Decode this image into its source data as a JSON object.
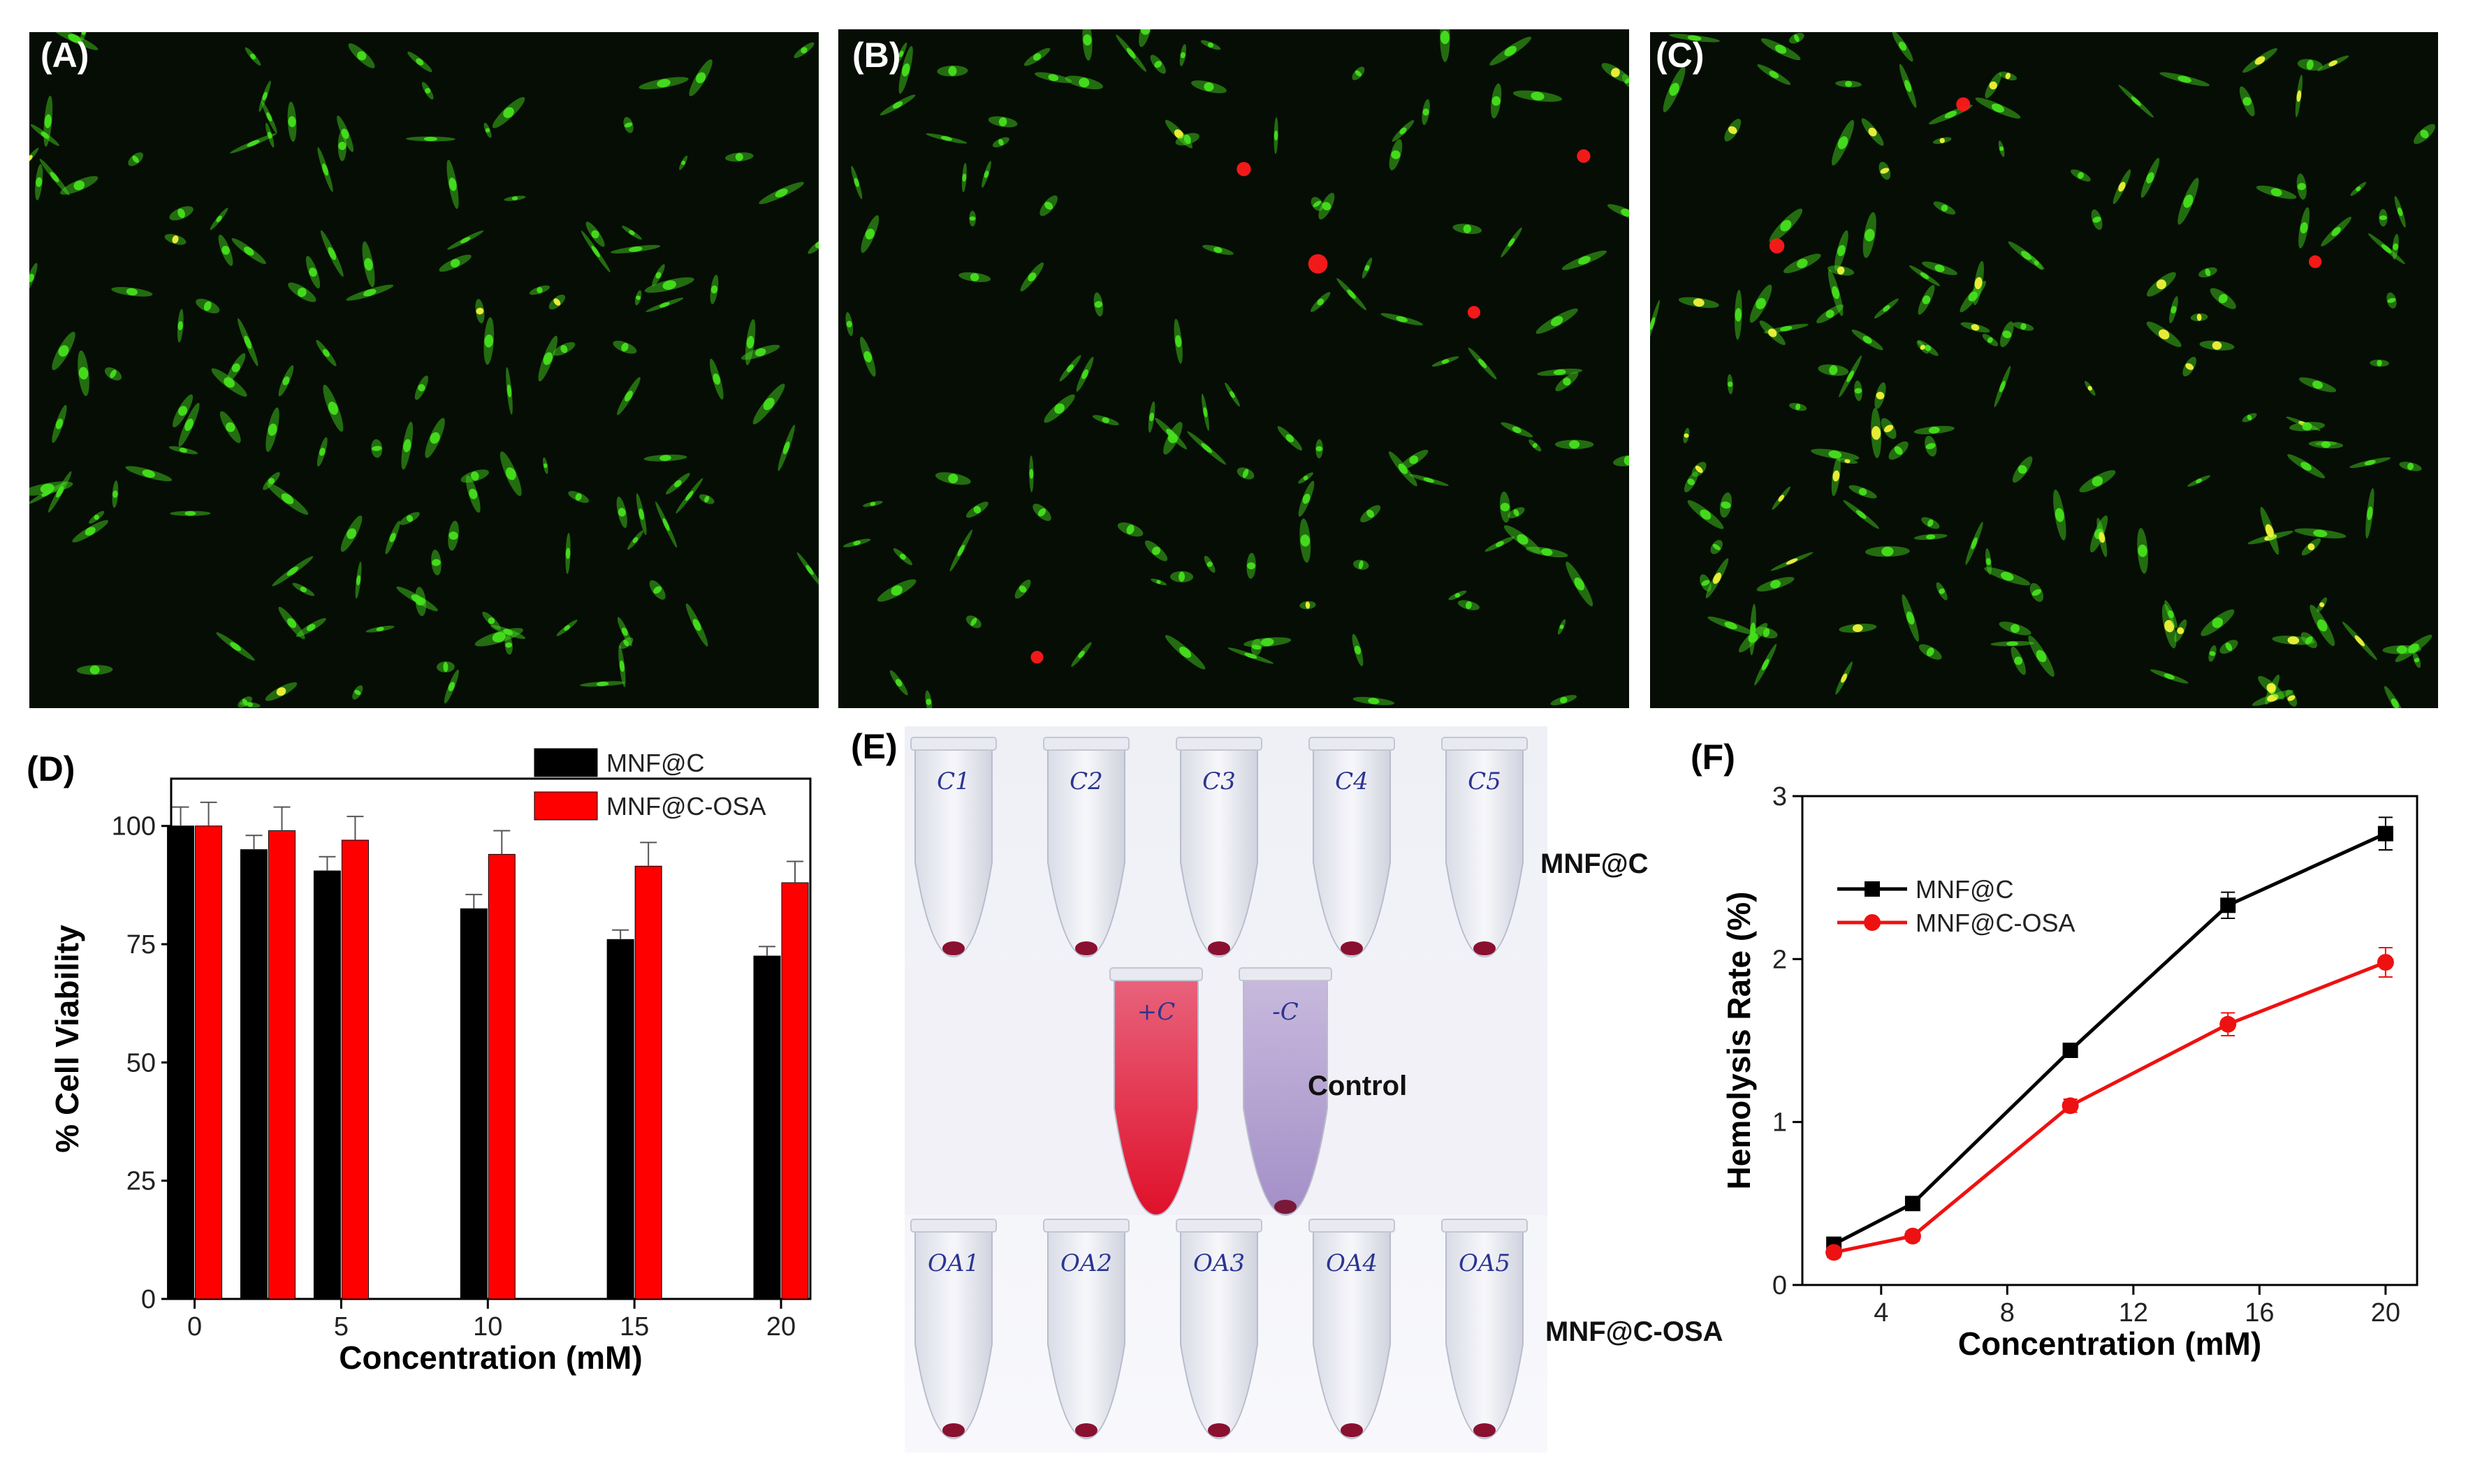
{
  "panel_labels": {
    "a": "(A)",
    "b": "(B)",
    "c": "(C)",
    "d": "(D)",
    "e": "(E)",
    "f": "(F)"
  },
  "microscopy": {
    "colors": {
      "background": "#060d05",
      "live": "#46e01e",
      "dead": "#ff1a1a",
      "merged": "#f2f23a"
    }
  },
  "photo": {
    "row_label_top": "MNF@C",
    "row_label_mid": "Control",
    "row_label_bottom": "MNF@C-OSA",
    "tubes_top": [
      "C1",
      "C2",
      "C3",
      "C4",
      "C5"
    ],
    "tubes_control": [
      "+C",
      "-C"
    ],
    "tubes_bottom": [
      "OA1",
      "OA2",
      "OA3",
      "OA4",
      "OA5"
    ]
  },
  "chart_data": [
    {
      "id": "D",
      "type": "bar",
      "xlabel": "Concentration (mM)",
      "ylabel": "% Cell Viability",
      "x_axis": {
        "range": [
          -0.8,
          21
        ],
        "ticks": [
          0,
          5,
          10,
          15,
          20
        ]
      },
      "y_axis": {
        "range": [
          0,
          110
        ],
        "ticks": [
          0,
          25,
          50,
          75,
          100
        ]
      },
      "legend_position": "top-right",
      "x": [
        0,
        2.5,
        5,
        10,
        15,
        20
      ],
      "series": [
        {
          "name": "MNF@C",
          "color": "#000000",
          "values": [
            100,
            95,
            90.5,
            82.5,
            76,
            72.5
          ],
          "errors": [
            4,
            3,
            3,
            3,
            2,
            2
          ]
        },
        {
          "name": "MNF@C-OSA",
          "color": "#ff0000",
          "values": [
            100,
            99,
            97,
            94,
            91.5,
            88
          ],
          "errors": [
            5,
            5,
            5,
            5,
            5,
            4.5
          ]
        }
      ]
    },
    {
      "id": "F",
      "type": "line",
      "xlabel": "Concentration (mM)",
      "ylabel": "Hemolysis Rate (%)",
      "x_axis": {
        "range": [
          1.5,
          21
        ],
        "ticks": [
          4,
          8,
          12,
          16,
          20
        ]
      },
      "y_axis": {
        "range": [
          0,
          3
        ],
        "ticks": [
          0,
          1,
          2,
          3
        ]
      },
      "legend_position": "top-left",
      "x": [
        2.5,
        5,
        10,
        15,
        20
      ],
      "series": [
        {
          "name": "MNF@C",
          "color": "#000000",
          "marker": "square",
          "values": [
            0.25,
            0.5,
            1.44,
            2.33,
            2.77
          ],
          "errors": [
            0.03,
            0.04,
            0.04,
            0.08,
            0.1
          ]
        },
        {
          "name": "MNF@C-OSA",
          "color": "#ee1111",
          "marker": "circle",
          "values": [
            0.2,
            0.3,
            1.1,
            1.6,
            1.98
          ],
          "errors": [
            0.03,
            0.03,
            0.04,
            0.07,
            0.09
          ]
        }
      ]
    }
  ]
}
